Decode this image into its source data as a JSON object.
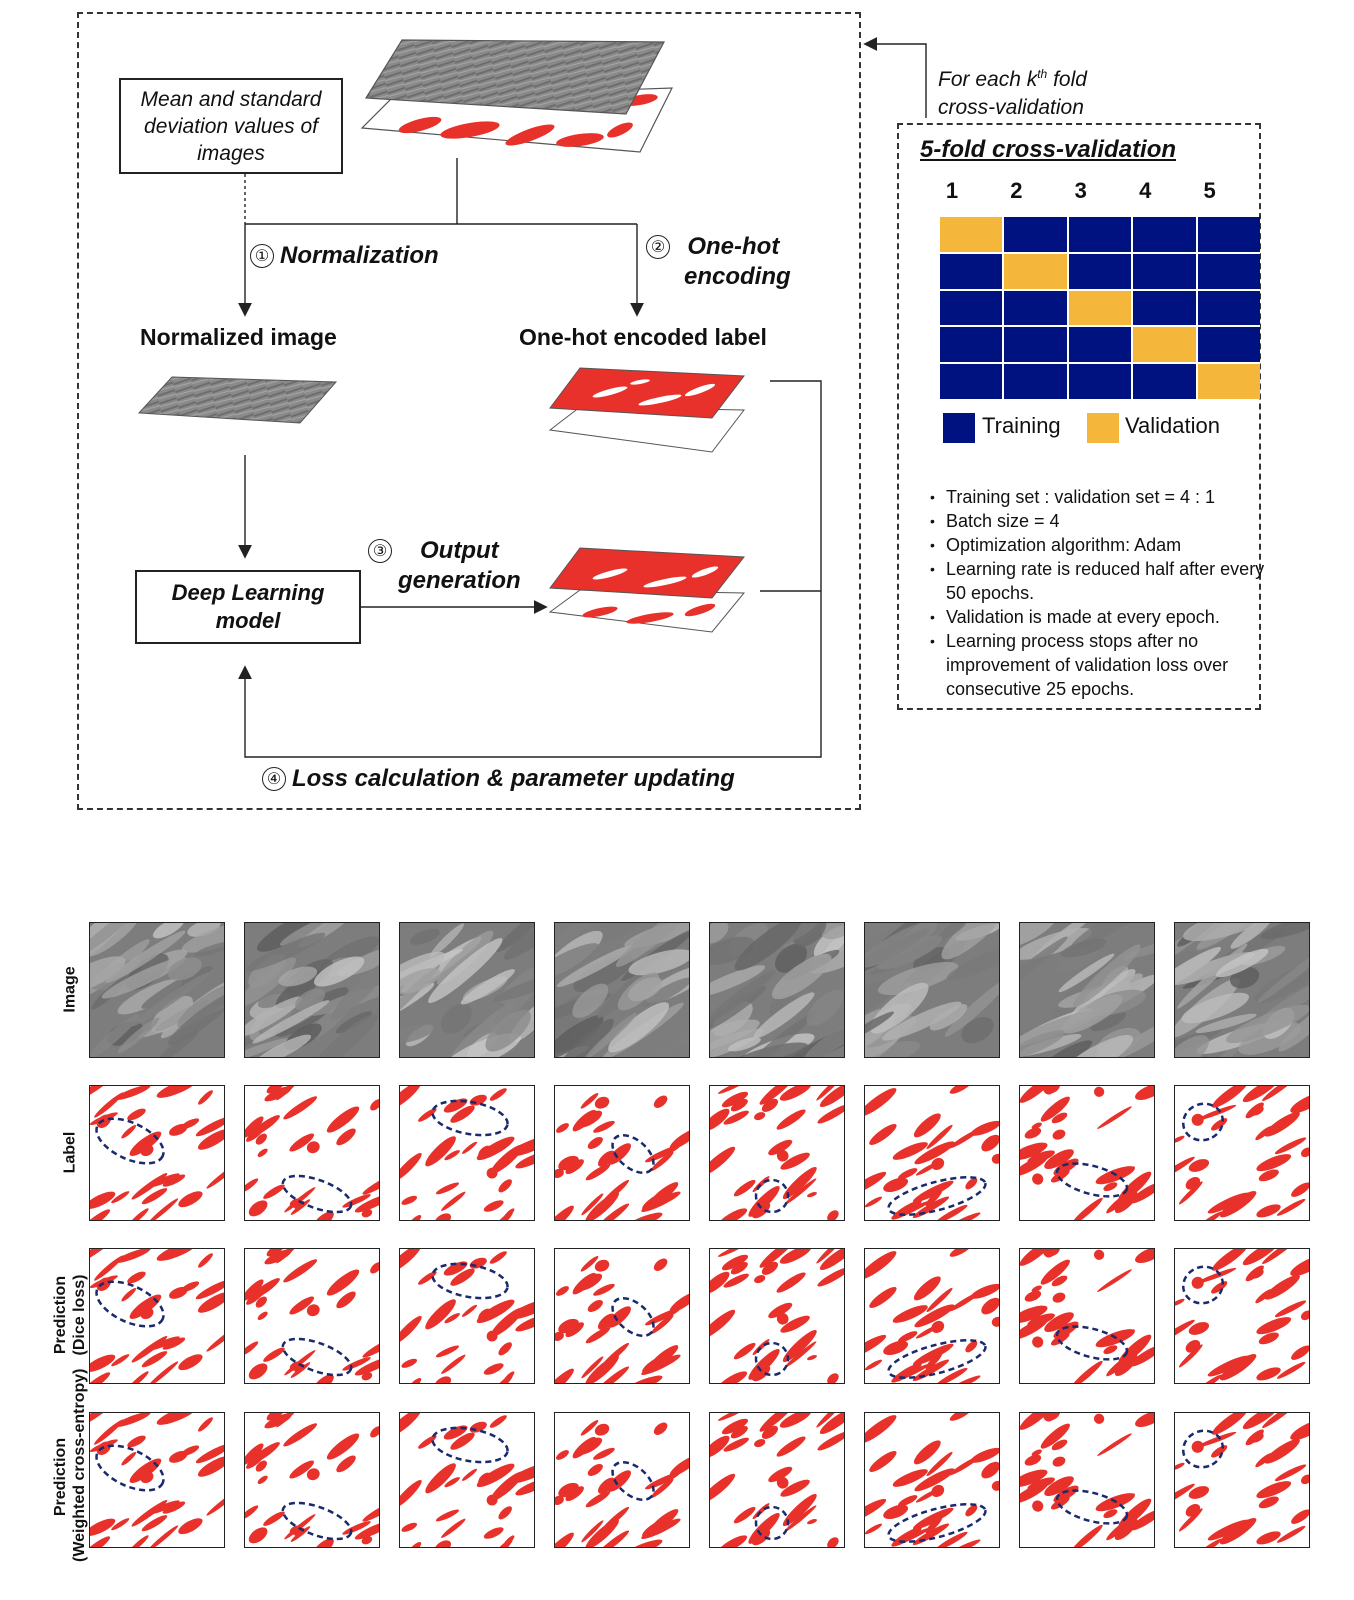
{
  "workflow": {
    "mean_std_box": "Mean and standard deviation values of images",
    "step1_num": "①",
    "step1_label": "Normalization",
    "step2_num": "②",
    "step2_line1": "One-hot",
    "step2_line2": "encoding",
    "normalized_image_label": "Normalized image",
    "onehot_label": "One-hot encoded label",
    "model_line1": "Deep Learning",
    "model_line2": "model",
    "step3_num": "③",
    "step3_line1": "Output",
    "step3_line2": "generation",
    "step4_num": "④",
    "step4_label": "Loss calculation & parameter updating"
  },
  "fold_note": {
    "line1_prefix": "For each k",
    "line1_sup": "th",
    "line1_suffix": " fold",
    "line2": "cross-validation"
  },
  "cross_validation": {
    "title": "5-fold cross-validation",
    "columns": [
      "1",
      "2",
      "3",
      "4",
      "5"
    ],
    "grid": [
      [
        "Validation",
        "Training",
        "Training",
        "Training",
        "Training"
      ],
      [
        "Training",
        "Validation",
        "Training",
        "Training",
        "Training"
      ],
      [
        "Training",
        "Training",
        "Validation",
        "Training",
        "Training"
      ],
      [
        "Training",
        "Training",
        "Training",
        "Validation",
        "Training"
      ],
      [
        "Training",
        "Training",
        "Training",
        "Training",
        "Validation"
      ]
    ],
    "legend": [
      {
        "label": "Training",
        "color": "#00127f"
      },
      {
        "label": "Validation",
        "color": "#f5b73b"
      }
    ],
    "notes": [
      "Training set : validation set = 4 : 1",
      "Batch size = 4",
      "Optimization algorithm: Adam",
      "Learning rate is reduced half after every 50 epochs.",
      "Validation is made at every epoch.",
      "Learning process stops after no improvement of validation loss over consecutive 25 epochs."
    ]
  },
  "results": {
    "row_labels": [
      {
        "line1": "Image",
        "line2": ""
      },
      {
        "line1": "Label",
        "line2": ""
      },
      {
        "line1": "Prediction",
        "line2": "(Dice loss)"
      },
      {
        "line1": "Prediction",
        "line2": "(Weighted cross-entropy)"
      }
    ],
    "column_count": 8,
    "colors": {
      "mask": "#e8312a",
      "highlight": "#1a2a6c",
      "sem": "#7d7d7d"
    }
  }
}
